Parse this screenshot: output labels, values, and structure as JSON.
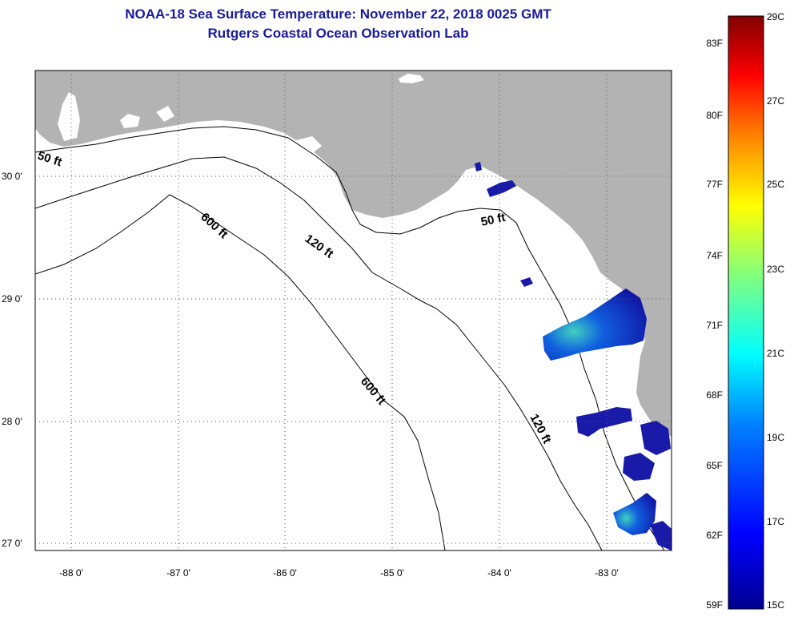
{
  "title": "NOAA-18 Sea Surface Temperature:  November 22, 2018 0025 GMT",
  "subtitle": "Rutgers Coastal Ocean Observation Lab",
  "map": {
    "lon_labels": [
      "-88 0'",
      "-87 0'",
      "-86 0'",
      "-85 0'",
      "-84 0'",
      "-83 0'"
    ],
    "lat_labels": [
      "30 0'",
      "29 0'",
      "28 0'",
      "27 0'"
    ],
    "contour_labels": [
      "50 ft",
      "600 ft",
      "120 ft",
      "50 ft",
      "600 ft",
      "120 ft"
    ],
    "colors": {
      "land": "#b3b3b3",
      "sea": "#ffffff",
      "contour": "#000000",
      "title": "#1a1a9a"
    }
  },
  "colorbar": {
    "fahrenheit_labels": [
      "83F",
      "80F",
      "77F",
      "74F",
      "71F",
      "68F",
      "65F",
      "62F",
      "59F"
    ],
    "celsius_labels": [
      "29C",
      "27C",
      "25C",
      "23C",
      "21C",
      "19C",
      "17C",
      "15C"
    ],
    "range_c": [
      15,
      29
    ],
    "colors": [
      "#00008f",
      "#0000ff",
      "#0080ff",
      "#00ffff",
      "#80ff80",
      "#ffff00",
      "#ff8000",
      "#ff0000",
      "#800000"
    ]
  }
}
